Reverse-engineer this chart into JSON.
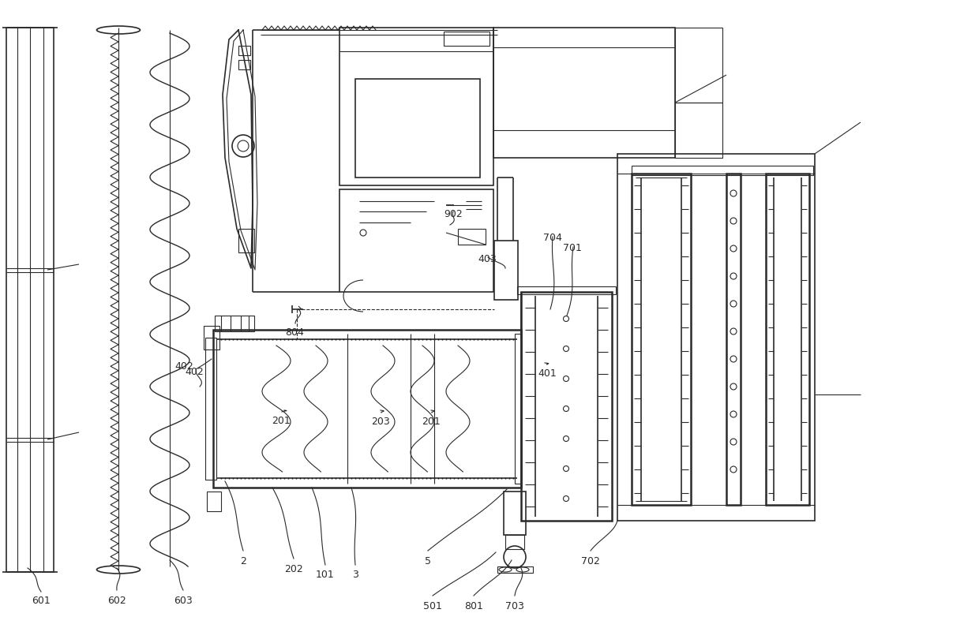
{
  "bg_color": "#ffffff",
  "line_color": "#2a2a2a",
  "fig_width": 12.4,
  "fig_height": 7.96,
  "dpi": 100,
  "labels": [
    [
      "601",
      52,
      752
    ],
    [
      "602",
      148,
      752
    ],
    [
      "603",
      232,
      752
    ],
    [
      "402",
      248,
      468
    ],
    [
      "2",
      308,
      700
    ],
    [
      "202",
      372,
      710
    ],
    [
      "101",
      415,
      718
    ],
    [
      "3",
      452,
      718
    ],
    [
      "5",
      542,
      700
    ],
    [
      "501",
      548,
      758
    ],
    [
      "801",
      600,
      758
    ],
    [
      "703",
      650,
      758
    ],
    [
      "702",
      748,
      700
    ],
    [
      "804",
      374,
      412
    ],
    [
      "403",
      618,
      325
    ],
    [
      "704",
      700,
      298
    ],
    [
      "701",
      726,
      312
    ],
    [
      "401",
      694,
      462
    ],
    [
      "902",
      574,
      268
    ],
    [
      "201",
      358,
      522
    ],
    [
      "203",
      484,
      522
    ],
    [
      "201",
      548,
      522
    ]
  ]
}
